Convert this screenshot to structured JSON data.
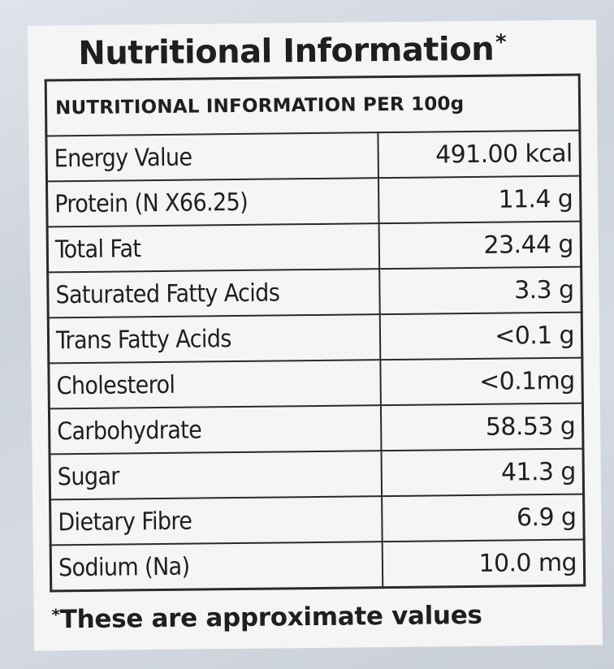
{
  "title": "Nutritional Information",
  "title_mark": "*",
  "table": {
    "header": "NUTRITIONAL INFORMATION PER 100g",
    "rows": [
      {
        "name": "Energy Value",
        "value": "491.00 kcal"
      },
      {
        "name": "Protein (N X66.25)",
        "value": "11.4 g"
      },
      {
        "name": "Total Fat",
        "value": "23.44 g"
      },
      {
        "name": "Saturated Fatty Acids",
        "value": "3.3 g"
      },
      {
        "name": "Trans Fatty Acids",
        "value": "<0.1 g"
      },
      {
        "name": "Cholesterol",
        "value": "<0.1mg"
      },
      {
        "name": "Carbohydrate",
        "value": "58.53 g"
      },
      {
        "name": "Sugar",
        "value": "41.3 g"
      },
      {
        "name": "Dietary Fibre",
        "value": "6.9 g"
      },
      {
        "name": "Sodium (Na)",
        "value": "10.0 mg"
      }
    ]
  },
  "footnote": {
    "mark": "*",
    "text": "These are approximate values"
  }
}
